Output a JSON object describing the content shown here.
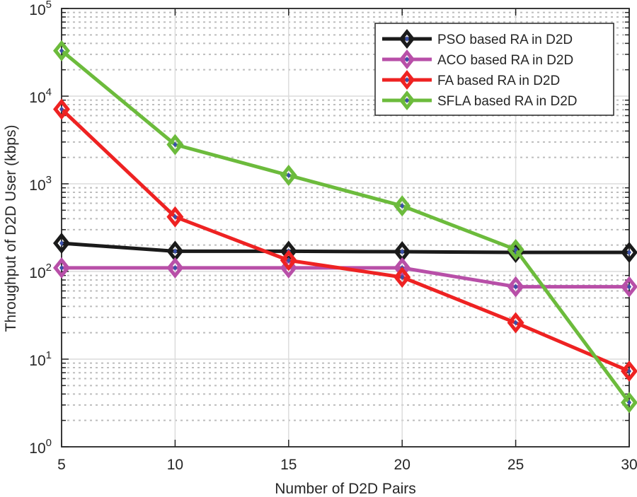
{
  "chart_data": {
    "type": "line",
    "title": "",
    "xlabel": "Number of D2D Pairs",
    "ylabel": "Throughput of D2D User (kbps)",
    "x": [
      5,
      10,
      15,
      20,
      25,
      30
    ],
    "xlim": [
      5,
      30
    ],
    "ylim": [
      1,
      100000
    ],
    "yscale": "log",
    "xticks": [
      "5",
      "10",
      "15",
      "20",
      "25",
      "30"
    ],
    "yticks": [
      {
        "base": "10",
        "exp": "0"
      },
      {
        "base": "10",
        "exp": "1"
      },
      {
        "base": "10",
        "exp": "2"
      },
      {
        "base": "10",
        "exp": "3"
      },
      {
        "base": "10",
        "exp": "4"
      },
      {
        "base": "10",
        "exp": "5"
      }
    ],
    "grid": true,
    "legend_position": "top-right",
    "marker": "diamond",
    "marker_center_color": "#3a4fa8",
    "series": [
      {
        "name": "PSO based RA in D2D",
        "color": "#1a1a1a",
        "values": [
          210,
          170,
          170,
          168,
          165,
          165
        ]
      },
      {
        "name": "ACO based RA in D2D",
        "color": "#b84fa8",
        "values": [
          110,
          110,
          110,
          110,
          67,
          67
        ]
      },
      {
        "name": "FA based RA in D2D",
        "color": "#ee2222",
        "values": [
          7100,
          420,
          134,
          86,
          26,
          7.3
        ]
      },
      {
        "name": "SFLA based RA in D2D",
        "color": "#6cbb3c",
        "values": [
          33000,
          2800,
          1250,
          560,
          178,
          3.2
        ]
      }
    ]
  }
}
